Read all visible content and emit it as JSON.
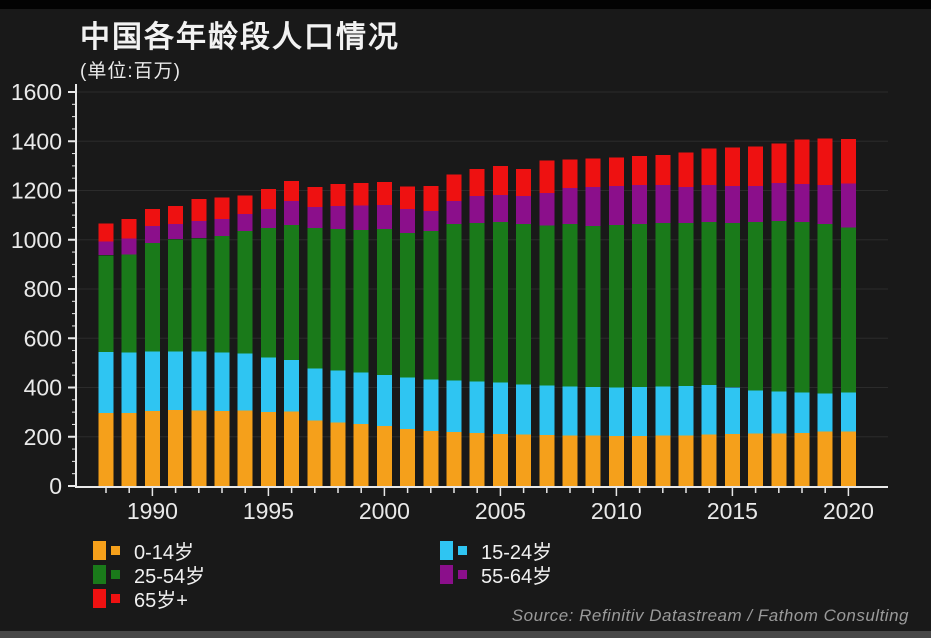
{
  "header": {
    "title": "中国各年龄段人口情况",
    "subtitle": "(单位:百万)"
  },
  "source": "Source: Refinitiv Datastream / Fathom Consulting",
  "colors": {
    "background": "#191919",
    "axis": "#e8e8e8",
    "gridline": "rgba(255,255,255,0.08)",
    "title_text": "#f2f2f2",
    "source_text": "#9a9a9a"
  },
  "chart_data": {
    "type": "bar",
    "stacked": true,
    "title": "中国各年龄段人口情况",
    "unit_label": "(单位:百万)",
    "xlabel": "",
    "ylabel": "",
    "ylim": [
      0,
      1600
    ],
    "y_ticks": [
      0,
      200,
      400,
      600,
      800,
      1000,
      1200,
      1400,
      1600
    ],
    "y_minor_step": 50,
    "grid": true,
    "legend_position": "bottom",
    "categories": [
      1988,
      1989,
      1990,
      1991,
      1992,
      1993,
      1994,
      1995,
      1996,
      1997,
      1998,
      1999,
      2000,
      2001,
      2002,
      2003,
      2004,
      2005,
      2006,
      2007,
      2008,
      2009,
      2010,
      2011,
      2012,
      2013,
      2014,
      2015,
      2016,
      2017,
      2018,
      2019,
      2020
    ],
    "x_tick_labels": [
      "1990",
      "1995",
      "2000",
      "2005",
      "2010",
      "2015",
      "2020"
    ],
    "series": [
      {
        "name": "0-14岁",
        "color": "#f5a01b",
        "values": [
          296,
          297,
          304,
          309,
          307,
          305,
          307,
          300,
          303,
          266,
          259,
          251,
          243,
          232,
          224,
          219,
          215,
          212,
          210,
          208,
          206,
          205,
          204,
          204,
          205,
          206,
          209,
          211,
          213,
          214,
          216,
          221,
          222
        ]
      },
      {
        "name": "15-24岁",
        "color": "#2fc5f2",
        "values": [
          249,
          245,
          242,
          238,
          239,
          238,
          231,
          222,
          208,
          212,
          211,
          209,
          207,
          209,
          209,
          209,
          209,
          208,
          203,
          200,
          198,
          197,
          196,
          198,
          199,
          201,
          202,
          190,
          175,
          170,
          164,
          154,
          158
        ]
      },
      {
        "name": "25-54岁",
        "color": "#1a7a1a",
        "values": [
          392,
          399,
          440,
          455,
          460,
          472,
          497,
          525,
          548,
          569,
          573,
          579,
          593,
          586,
          602,
          635,
          644,
          652,
          650,
          651,
          659,
          653,
          659,
          661,
          664,
          661,
          661,
          667,
          684,
          692,
          692,
          688,
          670
        ]
      },
      {
        "name": "55-64岁",
        "color": "#8b0f8b",
        "values": [
          57,
          65,
          69,
          61,
          70,
          70,
          70,
          78,
          98,
          86,
          94,
          100,
          98,
          98,
          82,
          94,
          110,
          110,
          115,
          131,
          148,
          160,
          160,
          160,
          155,
          147,
          151,
          151,
          147,
          155,
          155,
          160,
          178
        ]
      },
      {
        "name": "65岁+",
        "color": "#ee1111",
        "values": [
          73,
          78,
          70,
          74,
          90,
          87,
          75,
          82,
          82,
          82,
          90,
          92,
          94,
          91,
          102,
          107,
          110,
          118,
          110,
          131,
          114,
          114,
          114,
          118,
          122,
          139,
          147,
          155,
          159,
          160,
          180,
          188,
          182
        ]
      }
    ],
    "legend_columns": [
      [
        0,
        2,
        4
      ],
      [
        1,
        3
      ]
    ]
  }
}
